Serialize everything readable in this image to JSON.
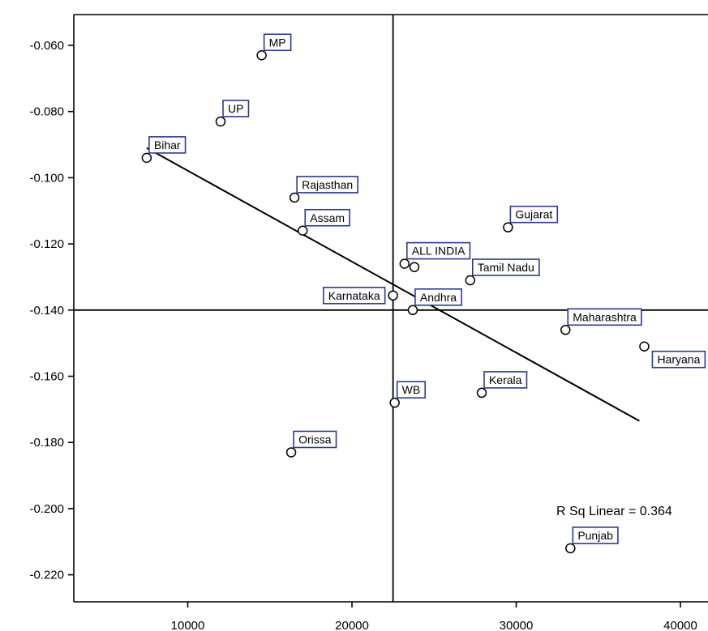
{
  "chart_data": {
    "type": "scatter",
    "title": "",
    "xlabel": "",
    "ylabel": "",
    "xlim": [
      3000,
      42000
    ],
    "ylim": [
      -0.229,
      -0.051
    ],
    "x_ticks": [
      10000,
      20000,
      30000,
      40000
    ],
    "y_ticks": [
      -0.06,
      -0.08,
      -0.1,
      -0.12,
      -0.14,
      -0.16,
      -0.18,
      -0.2,
      -0.22
    ],
    "x_tick_labels": [
      "10000",
      "20000",
      "30000",
      "40000"
    ],
    "y_tick_labels": [
      "-0.060",
      "-0.080",
      "-0.100",
      "-0.120",
      "-0.140",
      "-0.160",
      "-0.180",
      "-0.200",
      "-0.220"
    ],
    "grid": false,
    "reference_lines": {
      "x": 22500,
      "y": -0.14
    },
    "fit_line": {
      "x": [
        7500,
        37500
      ],
      "y": [
        -0.091,
        -0.1735
      ]
    },
    "annotation": "R Sq Linear = 0.364",
    "points": [
      {
        "label": "MP",
        "x": 14500,
        "y": -0.063,
        "label_pos": "above-right"
      },
      {
        "label": "UP",
        "x": 12000,
        "y": -0.083,
        "label_pos": "above-right"
      },
      {
        "label": "Bihar",
        "x": 7500,
        "y": -0.094,
        "label_pos": "above-right"
      },
      {
        "label": "Rajasthan",
        "x": 16500,
        "y": -0.106,
        "label_pos": "above-right"
      },
      {
        "label": "Assam",
        "x": 17000,
        "y": -0.116,
        "label_pos": "above-right"
      },
      {
        "label": "ALL INDIA",
        "x": 23200,
        "y": -0.126,
        "label_pos": "above-right"
      },
      {
        "label": "",
        "x": 23800,
        "y": -0.127,
        "label_pos": "none"
      },
      {
        "label": "Gujarat",
        "x": 29500,
        "y": -0.115,
        "label_pos": "above-right"
      },
      {
        "label": "Tamil Nadu",
        "x": 27200,
        "y": -0.131,
        "label_pos": "above-right"
      },
      {
        "label": "Karnataka",
        "x": 22500,
        "y": -0.1356,
        "label_pos": "left"
      },
      {
        "label": "Andhra",
        "x": 23700,
        "y": -0.14,
        "label_pos": "above-right"
      },
      {
        "label": "Maharashtra",
        "x": 33000,
        "y": -0.146,
        "label_pos": "above-right"
      },
      {
        "label": "Haryana",
        "x": 37800,
        "y": -0.151,
        "label_pos": "below-right"
      },
      {
        "label": "Kerala",
        "x": 27900,
        "y": -0.165,
        "label_pos": "above-right"
      },
      {
        "label": "WB",
        "x": 22600,
        "y": -0.168,
        "label_pos": "above-right"
      },
      {
        "label": "Orissa",
        "x": 16300,
        "y": -0.183,
        "label_pos": "above-right"
      },
      {
        "label": "Punjab",
        "x": 33300,
        "y": -0.212,
        "label_pos": "above-right"
      }
    ]
  }
}
